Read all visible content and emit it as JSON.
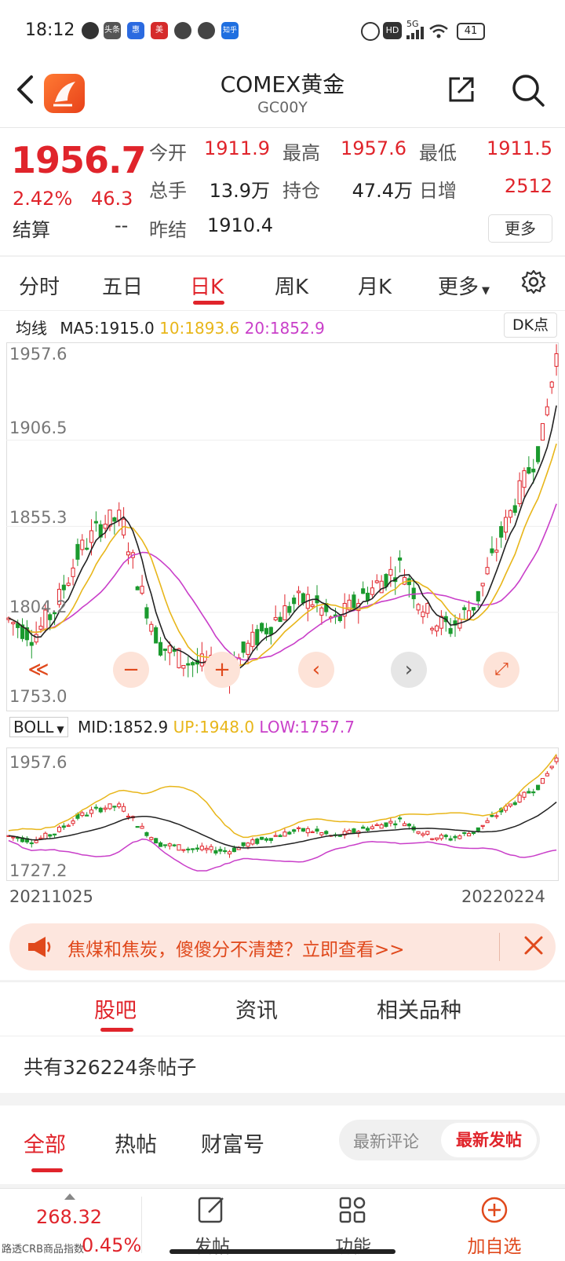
{
  "status_bar": {
    "time": "18:12",
    "app_badges": [
      "头条",
      "惠",
      "美",
      "知乎"
    ],
    "network": "5G",
    "hd": "HD",
    "battery": "41"
  },
  "header": {
    "title": "COMEX黄金",
    "subtitle": "GC00Y"
  },
  "quote": {
    "price": "1956.7",
    "change_pct": "2.42%",
    "change": "46.3",
    "settle_label": "结算",
    "settle_value": "--",
    "fields": [
      {
        "label": "今开",
        "value": "1911.9"
      },
      {
        "label": "最高",
        "value": "1957.6"
      },
      {
        "label": "最低",
        "value": "1911.5"
      },
      {
        "label": "总手",
        "value": "13.9万"
      },
      {
        "label": "持仓",
        "value": "47.4万"
      },
      {
        "label": "日增",
        "value": "2512"
      },
      {
        "label": "昨结",
        "value": "1910.4"
      }
    ],
    "more_label": "更多",
    "up_color": "#e0242b"
  },
  "chart_tabs": {
    "items": [
      "分时",
      "五日",
      "日K",
      "周K",
      "月K",
      "更多"
    ],
    "active": "日K"
  },
  "ma_legend": {
    "prefix": "均线",
    "ma5": "MA5:1915.0",
    "ma10": "10:1893.6",
    "ma20": "20:1852.9",
    "dk_label": "DK点"
  },
  "main_chart_axis": [
    "1957.6",
    "1906.5",
    "1855.3",
    "1804.2",
    "1753.0"
  ],
  "boll_legend": {
    "name": "BOLL",
    "mid": "MID:1852.9",
    "up": "UP:1948.0",
    "low": "LOW:1757.7"
  },
  "sub_chart_axis": [
    "1957.6",
    "1727.2"
  ],
  "dates": {
    "start": "20211025",
    "end": "20220224"
  },
  "chart_colors": {
    "up": "#e0242b",
    "down": "#1a9a2e",
    "ma5": "#222222",
    "ma10": "#e8b61a",
    "ma20": "#c93fc9"
  },
  "ad": {
    "text": "焦煤和焦炭，傻傻分不清楚？立即查看>>"
  },
  "section_tabs": {
    "items": [
      "股吧",
      "资讯",
      "相关品种"
    ],
    "active": "股吧"
  },
  "post_count": "共有326224条帖子",
  "filter_tabs": {
    "items": [
      "全部",
      "热帖",
      "财富号"
    ],
    "active": "全部",
    "sort_options": [
      "最新评论",
      "最新发帖"
    ],
    "sort_active": "最新发帖"
  },
  "bottom_bar": {
    "index_value": "268.32",
    "index_name": "路透CRB商品指数",
    "index_pct": "0.45%",
    "actions": [
      "发帖",
      "功能",
      "加自选"
    ]
  }
}
